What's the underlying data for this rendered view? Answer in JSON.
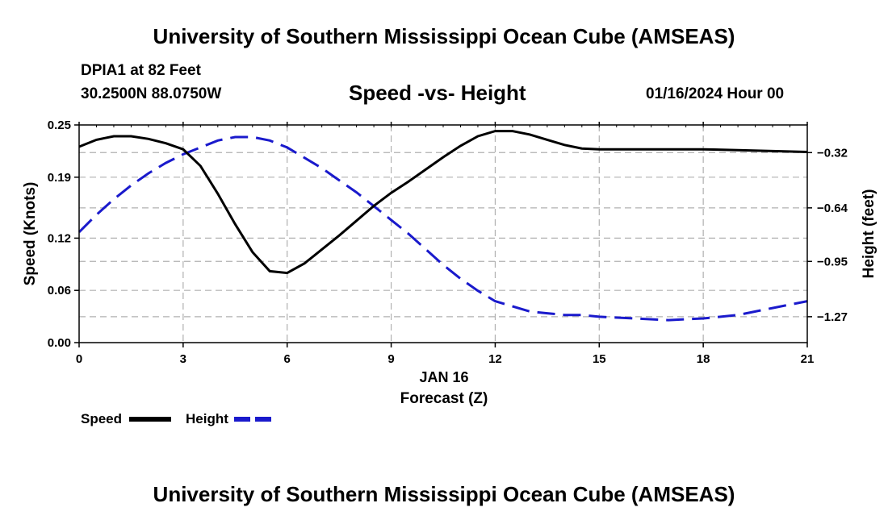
{
  "header": {
    "title": "University of Southern Mississippi Ocean Cube (AMSEAS)",
    "station": "DPIA1 at 82 Feet",
    "coordinates": "30.2500N  88.0750W",
    "subtitle": "Speed -vs- Height",
    "datetime": "01/16/2024 Hour 00"
  },
  "footer": {
    "title": "University of Southern Mississippi Ocean Cube (AMSEAS)"
  },
  "chart_data": {
    "type": "line",
    "xlabel_date": "JAN 16",
    "xlabel": "Forecast (Z)",
    "ylabel": "Speed (Knots)",
    "y2label": "Height (feet)",
    "xlim": [
      0,
      21
    ],
    "ylim": [
      0,
      0.25
    ],
    "y2lim": [
      -1.42,
      -0.16
    ],
    "x_ticks": [
      0,
      3,
      6,
      9,
      12,
      15,
      18,
      21
    ],
    "y_ticks": [
      0.0,
      0.06,
      0.12,
      0.19,
      0.25
    ],
    "y_tick_labels": [
      "0.00",
      "0.06",
      "0.12",
      "0.19",
      "0.25"
    ],
    "y2_ticks": [
      -0.32,
      -0.64,
      -0.95,
      -1.27
    ],
    "y2_tick_labels": [
      "-0.32",
      "-0.64",
      "-0.95",
      "-1.27"
    ],
    "grid": true,
    "series": [
      {
        "name": "Speed",
        "axis": "left",
        "color": "#000000",
        "style": "solid",
        "x": [
          0,
          0.5,
          1,
          1.5,
          2,
          2.5,
          3,
          3.5,
          4,
          4.5,
          5,
          5.5,
          6,
          6.5,
          7,
          7.5,
          8,
          8.5,
          9,
          9.5,
          10,
          10.5,
          11,
          11.5,
          12,
          12.5,
          13,
          13.5,
          14,
          14.5,
          15,
          16,
          17,
          18,
          19,
          20,
          21
        ],
        "values": [
          0.225,
          0.233,
          0.237,
          0.237,
          0.234,
          0.229,
          0.222,
          0.203,
          0.171,
          0.136,
          0.104,
          0.082,
          0.08,
          0.091,
          0.107,
          0.123,
          0.14,
          0.157,
          0.172,
          0.185,
          0.199,
          0.213,
          0.226,
          0.237,
          0.243,
          0.243,
          0.239,
          0.233,
          0.227,
          0.223,
          0.222,
          0.222,
          0.222,
          0.222,
          0.221,
          0.22,
          0.219
        ]
      },
      {
        "name": "Height",
        "axis": "right",
        "color": "#1a1acc",
        "style": "dashed",
        "x": [
          0,
          0.5,
          1,
          1.5,
          2,
          2.5,
          3,
          3.5,
          4,
          4.5,
          5,
          5.5,
          6,
          6.5,
          7,
          7.5,
          8,
          8.5,
          9,
          9.5,
          10,
          10.5,
          11,
          11.5,
          12,
          12.5,
          13,
          13.5,
          14,
          14.5,
          15,
          16,
          17,
          18,
          19,
          20,
          21
        ],
        "values": [
          -0.78,
          -0.68,
          -0.59,
          -0.51,
          -0.44,
          -0.38,
          -0.33,
          -0.29,
          -0.25,
          -0.23,
          -0.23,
          -0.25,
          -0.29,
          -0.35,
          -0.41,
          -0.48,
          -0.55,
          -0.63,
          -0.71,
          -0.79,
          -0.88,
          -0.97,
          -1.05,
          -1.12,
          -1.18,
          -1.21,
          -1.24,
          -1.25,
          -1.26,
          -1.26,
          -1.27,
          -1.28,
          -1.29,
          -1.28,
          -1.26,
          -1.22,
          -1.18
        ]
      }
    ],
    "legend": {
      "placement": "bottom-left",
      "items": [
        "Speed",
        "Height"
      ]
    }
  }
}
